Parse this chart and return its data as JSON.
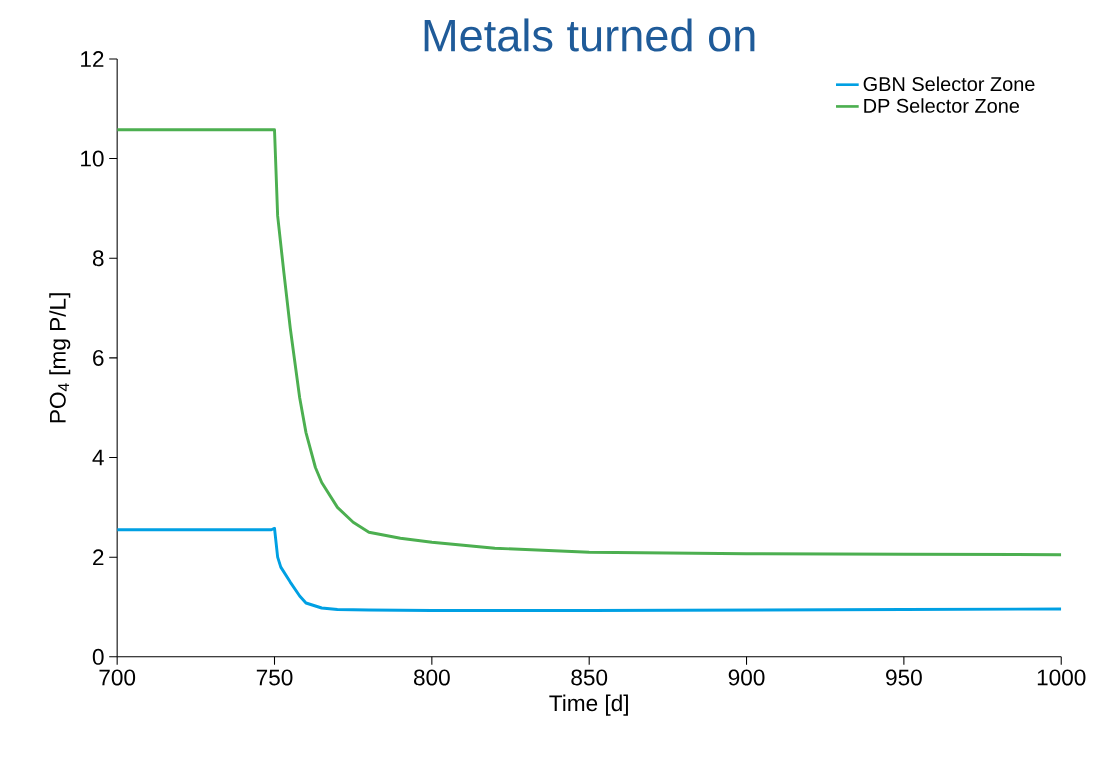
{
  "chart_data": {
    "type": "line",
    "title": "Metals turned on",
    "xlabel": "Time [d]",
    "ylabel": "PO$_{4}$ [mg P/L]",
    "xlim": [
      700,
      1000
    ],
    "xticks": [
      700,
      750,
      800,
      850,
      900,
      950,
      1000
    ],
    "ylim": [
      0,
      12
    ],
    "yticks": [
      0,
      2,
      4,
      6,
      8,
      10,
      12
    ],
    "grid": false,
    "legend": "top right",
    "marker": "none",
    "line_style": "solid",
    "series": [
      {
        "name": "GBN Selector Zone",
        "color": "#00a0e3",
        "x": [
          700,
          720,
          740,
          749,
          750,
          751,
          752,
          755,
          758,
          760,
          765,
          770,
          780,
          800,
          850,
          900,
          950,
          1000
        ],
        "values": [
          2.55,
          2.55,
          2.55,
          2.55,
          2.58,
          2.0,
          1.8,
          1.5,
          1.22,
          1.08,
          0.98,
          0.95,
          0.94,
          0.93,
          0.93,
          0.94,
          0.95,
          0.96
        ]
      },
      {
        "name": "DP Selector Zone",
        "color": "#4caf50",
        "x": [
          700,
          720,
          740,
          749,
          750,
          751,
          753,
          755,
          758,
          760,
          763,
          765,
          770,
          775,
          780,
          790,
          800,
          820,
          850,
          900,
          950,
          1000
        ],
        "values": [
          10.58,
          10.58,
          10.58,
          10.58,
          10.58,
          8.85,
          7.7,
          6.6,
          5.2,
          4.5,
          3.8,
          3.5,
          3.0,
          2.7,
          2.5,
          2.38,
          2.3,
          2.18,
          2.1,
          2.07,
          2.06,
          2.05
        ]
      }
    ]
  }
}
